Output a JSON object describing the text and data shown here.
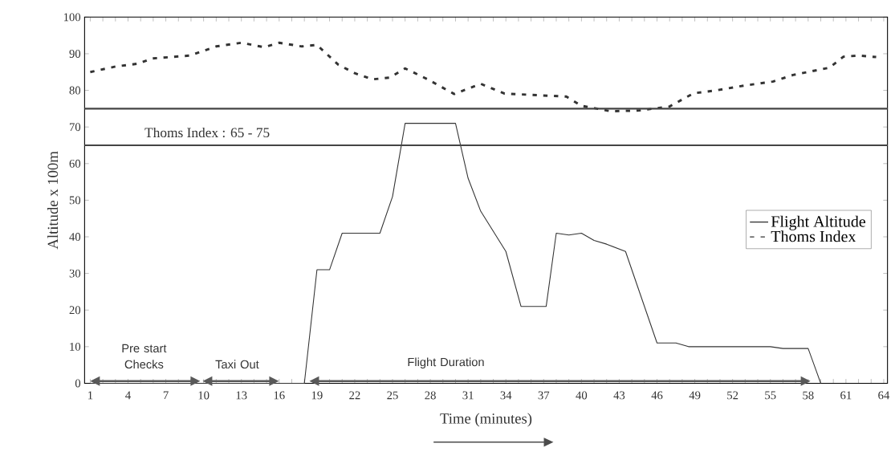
{
  "chart_data": {
    "type": "line",
    "xlabel": "Time (minutes)",
    "ylabel": "Altitude x 100m",
    "xlim": [
      0.55,
      64.3
    ],
    "ylim": [
      0,
      100
    ],
    "xticks": [
      1,
      {
        "value": 2,
        "label": null
      },
      {
        "value": 3,
        "label": null
      },
      4,
      {
        "value": 5,
        "label": null
      },
      {
        "value": 6,
        "label": null
      },
      7,
      {
        "value": 8,
        "label": null
      },
      {
        "value": 9,
        "label": null
      },
      10,
      {
        "value": 11,
        "label": null
      },
      {
        "value": 12,
        "label": null
      },
      13,
      {
        "value": 14,
        "label": null
      },
      {
        "value": 15,
        "label": null
      },
      16,
      {
        "value": 17,
        "label": null
      },
      {
        "value": 18,
        "label": null
      },
      19,
      {
        "value": 20,
        "label": null
      },
      {
        "value": 21,
        "label": null
      },
      22,
      {
        "value": 23,
        "label": null
      },
      {
        "value": 24,
        "label": null
      },
      25,
      {
        "value": 26,
        "label": null
      },
      {
        "value": 27,
        "label": null
      },
      28,
      {
        "value": 29,
        "label": null
      },
      {
        "value": 30,
        "label": null
      },
      31,
      {
        "value": 32,
        "label": null
      },
      {
        "value": 33,
        "label": null
      },
      34,
      {
        "value": 35,
        "label": null
      },
      {
        "value": 36,
        "label": null
      },
      37,
      {
        "value": 38,
        "label": null
      },
      {
        "value": 39,
        "label": null
      },
      40,
      {
        "value": 41,
        "label": null
      },
      {
        "value": 42,
        "label": null
      },
      43,
      {
        "value": 44,
        "label": null
      },
      {
        "value": 45,
        "label": null
      },
      46,
      {
        "value": 47,
        "label": null
      },
      {
        "value": 48,
        "label": null
      },
      49,
      {
        "value": 50,
        "label": null
      },
      {
        "value": 51,
        "label": null
      },
      52,
      {
        "value": 53,
        "label": null
      },
      {
        "value": 54,
        "label": null
      },
      55,
      {
        "value": 56,
        "label": null
      },
      {
        "value": 57,
        "label": null
      },
      58,
      {
        "value": 59,
        "label": null
      },
      {
        "value": 60,
        "label": null
      },
      61,
      {
        "value": 62,
        "label": null
      },
      {
        "value": 63,
        "label": null
      },
      64
    ],
    "yticks": [
      0,
      10,
      20,
      30,
      40,
      50,
      60,
      70,
      80,
      90,
      100
    ],
    "series": [
      {
        "name": "Flight Altitude",
        "color": "#333333",
        "line_style": "solid",
        "x": [
          1,
          18,
          19,
          20,
          21,
          24,
          25,
          26,
          30,
          31,
          32,
          34,
          35.2,
          37.2,
          38,
          39,
          40,
          41,
          42,
          43.5,
          46,
          47.5,
          48.5,
          55,
          56,
          58,
          59
        ],
        "values": [
          0,
          0,
          31,
          31,
          41,
          41,
          51,
          71,
          71,
          56,
          47,
          36,
          21,
          21,
          41,
          40.5,
          41,
          39,
          38,
          36,
          11,
          11,
          10,
          10,
          9.5,
          9.5,
          0
        ]
      },
      {
        "name": "Thoms Index",
        "color": "#333333",
        "line_style": "dashed",
        "x": [
          1,
          3,
          4.8,
          5.9,
          8.9,
          11,
          13,
          14.8,
          16,
          17.8,
          19,
          20.7,
          22,
          23.4,
          24.8,
          26,
          27.8,
          29.9,
          32,
          33.9,
          35.8,
          38.8,
          40,
          42.3,
          44.6,
          47,
          48.9,
          50.7,
          52.9,
          55.2,
          56.8,
          59.7,
          60.8,
          62,
          63.4
        ],
        "values": [
          85,
          86.5,
          87.3,
          88.7,
          89.5,
          92,
          93,
          91.8,
          93,
          92,
          92.4,
          87,
          84.7,
          83,
          83.5,
          86,
          83,
          79,
          81.8,
          79.1,
          78.8,
          78.3,
          75.8,
          74.3,
          74.5,
          75.6,
          79.2,
          80,
          81.3,
          82.4,
          84.2,
          86.2,
          89.2,
          89.5,
          89.1
        ]
      }
    ],
    "ref_lines": [
      {
        "axis": "y",
        "value": 75,
        "color": "#444444"
      },
      {
        "axis": "y",
        "value": 65,
        "color": "#444444"
      }
    ],
    "annotations": [
      "Thoms Index : 65 - 75",
      "Pre start Checks",
      "Taxi Out",
      "Flight Duration"
    ],
    "legend": "right",
    "grid": false
  }
}
